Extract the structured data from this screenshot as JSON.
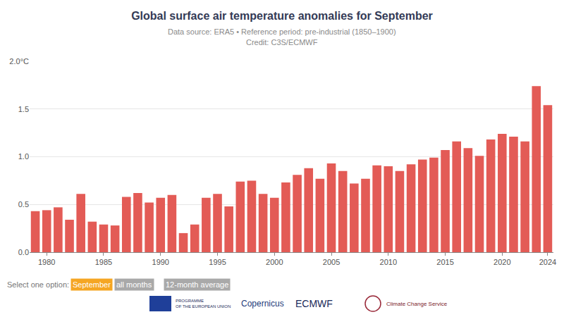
{
  "chart_data": {
    "type": "bar",
    "title": "Global surface air temperature anomalies for September",
    "subtitle": [
      "Data source: ERA5 • Reference period: pre-industrial (1850–1900)",
      "Credit: C3S/ECMWF"
    ],
    "x": [
      1979,
      1980,
      1981,
      1982,
      1983,
      1984,
      1985,
      1986,
      1987,
      1988,
      1989,
      1990,
      1991,
      1992,
      1993,
      1994,
      1995,
      1996,
      1997,
      1998,
      1999,
      2000,
      2001,
      2002,
      2003,
      2004,
      2005,
      2006,
      2007,
      2008,
      2009,
      2010,
      2011,
      2012,
      2013,
      2014,
      2015,
      2016,
      2017,
      2018,
      2019,
      2020,
      2021,
      2022,
      2023,
      2024
    ],
    "values": [
      0.43,
      0.44,
      0.47,
      0.34,
      0.61,
      0.32,
      0.29,
      0.28,
      0.58,
      0.62,
      0.52,
      0.57,
      0.6,
      0.2,
      0.29,
      0.57,
      0.61,
      0.48,
      0.74,
      0.75,
      0.61,
      0.57,
      0.73,
      0.81,
      0.88,
      0.77,
      0.93,
      0.85,
      0.72,
      0.77,
      0.91,
      0.9,
      0.85,
      0.92,
      0.97,
      0.99,
      1.07,
      1.16,
      1.09,
      1.01,
      1.18,
      1.24,
      1.21,
      1.16,
      1.74,
      1.54
    ],
    "color": "#e35b56",
    "xlim": [
      1978.5,
      2024.5
    ],
    "xticks": [
      1980,
      1985,
      1990,
      1995,
      2000,
      2005,
      2010,
      2015,
      2020,
      2024
    ],
    "ylim": [
      0,
      2
    ],
    "yticks": [
      {
        "value": 0,
        "label": "0.0"
      },
      {
        "value": 0.5,
        "label": "0.5"
      },
      {
        "value": 1,
        "label": "1.0"
      },
      {
        "value": 1.5,
        "label": "1.5"
      },
      {
        "value": 2,
        "label": "2.0°C"
      }
    ],
    "grid": true,
    "annotations": [
      "Select one option:",
      "September",
      "all months",
      "12-month average",
      "PROGRAMME OF THE EUROPEAN UNION",
      "Copernicus",
      "ECMWF",
      "Climate Change Service"
    ]
  }
}
